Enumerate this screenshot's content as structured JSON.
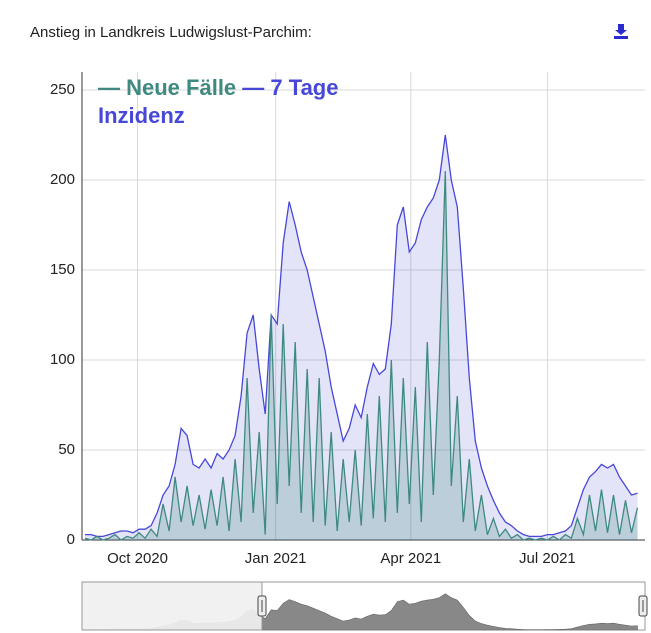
{
  "chart_data": {
    "type": "line",
    "title": "Anstieg in Landkreis Ludwigslust-Parchim:",
    "x": [
      "2020-08-27",
      "2020-08-31",
      "2020-09-04",
      "2020-09-08",
      "2020-09-12",
      "2020-09-16",
      "2020-09-20",
      "2020-09-24",
      "2020-09-28",
      "2020-10-02",
      "2020-10-06",
      "2020-10-10",
      "2020-10-14",
      "2020-10-18",
      "2020-10-22",
      "2020-10-26",
      "2020-10-30",
      "2020-11-03",
      "2020-11-07",
      "2020-11-11",
      "2020-11-15",
      "2020-11-19",
      "2020-11-23",
      "2020-11-27",
      "2020-12-01",
      "2020-12-05",
      "2020-12-09",
      "2020-12-13",
      "2020-12-17",
      "2020-12-21",
      "2020-12-25",
      "2020-12-29",
      "2021-01-02",
      "2021-01-06",
      "2021-01-10",
      "2021-01-14",
      "2021-01-18",
      "2021-01-22",
      "2021-01-26",
      "2021-01-30",
      "2021-02-03",
      "2021-02-07",
      "2021-02-11",
      "2021-02-15",
      "2021-02-19",
      "2021-02-23",
      "2021-02-27",
      "2021-03-03",
      "2021-03-07",
      "2021-03-11",
      "2021-03-15",
      "2021-03-19",
      "2021-03-23",
      "2021-03-27",
      "2021-03-31",
      "2021-04-04",
      "2021-04-08",
      "2021-04-12",
      "2021-04-16",
      "2021-04-20",
      "2021-04-24",
      "2021-04-28",
      "2021-05-02",
      "2021-05-06",
      "2021-05-10",
      "2021-05-14",
      "2021-05-18",
      "2021-05-22",
      "2021-05-26",
      "2021-05-30",
      "2021-06-03",
      "2021-06-07",
      "2021-06-11",
      "2021-06-15",
      "2021-06-19",
      "2021-06-23",
      "2021-06-27",
      "2021-07-01",
      "2021-07-05",
      "2021-07-09",
      "2021-07-13",
      "2021-07-17",
      "2021-07-21",
      "2021-07-25",
      "2021-07-29",
      "2021-08-02",
      "2021-08-06",
      "2021-08-10",
      "2021-08-14",
      "2021-08-18",
      "2021-08-22",
      "2021-08-26",
      "2021-08-30"
    ],
    "series": [
      {
        "name": "Neue Fälle",
        "color": "#3f8a80",
        "values": [
          1,
          0,
          2,
          0,
          1,
          3,
          0,
          2,
          1,
          4,
          1,
          6,
          2,
          20,
          5,
          35,
          10,
          30,
          8,
          25,
          6,
          28,
          8,
          35,
          5,
          45,
          10,
          90,
          15,
          60,
          3,
          125,
          20,
          120,
          30,
          110,
          15,
          95,
          10,
          90,
          8,
          60,
          5,
          45,
          10,
          50,
          8,
          70,
          12,
          80,
          10,
          100,
          15,
          90,
          20,
          85,
          10,
          110,
          25,
          100,
          205,
          30,
          80,
          10,
          45,
          5,
          25,
          3,
          12,
          2,
          6,
          1,
          3,
          0,
          1,
          0,
          1,
          0,
          2,
          0,
          3,
          1,
          12,
          3,
          25,
          5,
          28,
          4,
          25,
          3,
          22,
          4,
          18
        ]
      },
      {
        "name": "7 Tage Inzidenz",
        "color": "#4848d8",
        "values": [
          3,
          3,
          2,
          2,
          3,
          4,
          5,
          5,
          4,
          6,
          6,
          8,
          15,
          25,
          30,
          42,
          62,
          58,
          42,
          40,
          45,
          40,
          48,
          45,
          50,
          58,
          80,
          115,
          125,
          95,
          70,
          125,
          120,
          165,
          188,
          175,
          160,
          150,
          135,
          120,
          105,
          85,
          70,
          55,
          62,
          75,
          68,
          85,
          98,
          92,
          95,
          120,
          175,
          185,
          160,
          165,
          178,
          185,
          190,
          200,
          225,
          200,
          185,
          140,
          90,
          55,
          40,
          30,
          22,
          15,
          10,
          8,
          5,
          3,
          2,
          2,
          2,
          3,
          3,
          4,
          5,
          8,
          18,
          28,
          35,
          38,
          42,
          40,
          42,
          35,
          30,
          25,
          26
        ]
      }
    ],
    "xlim": [
      "2020-08-25",
      "2021-09-04"
    ],
    "xticks": [
      {
        "value": "2020-10-01",
        "label": "Oct 2020"
      },
      {
        "value": "2021-01-01",
        "label": "Jan 2021"
      },
      {
        "value": "2021-04-01",
        "label": "Apr 2021"
      },
      {
        "value": "2021-07-01",
        "label": "Jul 2021"
      }
    ],
    "ylim": [
      0,
      260
    ],
    "yticks": [
      0,
      50,
      100,
      150,
      200,
      250
    ],
    "grid": true,
    "legend": "top-left"
  }
}
